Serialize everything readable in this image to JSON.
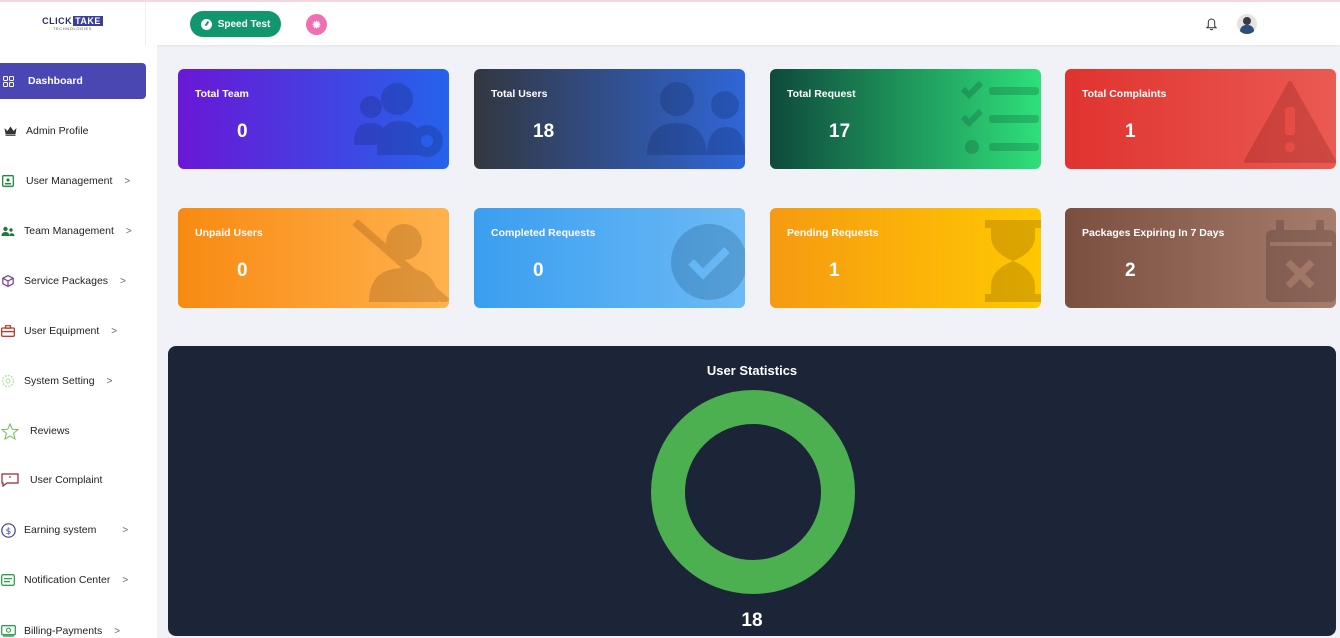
{
  "header": {
    "logo_main": "CLICK",
    "logo_highlight": "TAKE",
    "logo_sub": "TECHNOLOGIES",
    "speed_test_label": "Speed Test"
  },
  "sidebar": {
    "items": [
      {
        "label": "Dashboard",
        "icon": "grid-icon",
        "active": true,
        "chevron": false
      },
      {
        "label": "Admin Profile",
        "icon": "crown-icon",
        "chevron": false
      },
      {
        "label": "User Management",
        "icon": "user-card-icon",
        "chevron": true
      },
      {
        "label": "Team Management",
        "icon": "team-icon",
        "chevron": true
      },
      {
        "label": "Service Packages",
        "icon": "package-icon",
        "chevron": true
      },
      {
        "label": "User Equipment",
        "icon": "toolbox-icon",
        "chevron": true
      },
      {
        "label": "System Setting",
        "icon": "settings-icon",
        "chevron": true
      },
      {
        "label": "Reviews",
        "icon": "star-icon",
        "chevron": false
      },
      {
        "label": "User Complaint",
        "icon": "complaint-icon",
        "chevron": false
      },
      {
        "label": "Earning system",
        "icon": "dollar-icon",
        "chevron": true
      },
      {
        "label": "Notification Center",
        "icon": "notification-icon",
        "chevron": true
      },
      {
        "label": "Billing-Payments",
        "icon": "billing-icon",
        "chevron": true
      }
    ],
    "chevron_glyph": ">"
  },
  "cards": [
    {
      "title": "Total Team",
      "value": "0"
    },
    {
      "title": "Total Users",
      "value": "18"
    },
    {
      "title": "Total Request",
      "value": "17"
    },
    {
      "title": "Total Complaints",
      "value": "1"
    },
    {
      "title": "Unpaid Users",
      "value": "0"
    },
    {
      "title": "Completed Requests",
      "value": "0"
    },
    {
      "title": "Pending Requests",
      "value": "1"
    },
    {
      "title": "Packages Expiring In 7 Days",
      "value": "2"
    }
  ],
  "stats": {
    "title": "User Statistics",
    "total": "18",
    "ring_color": "#4caf50"
  },
  "colors": {
    "accent": "#4a46b2",
    "speed_test": "#11976e",
    "panel": "#1c2438"
  }
}
